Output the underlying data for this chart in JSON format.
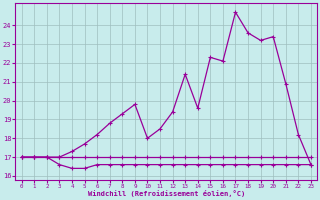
{
  "xlabel": "Windchill (Refroidissement éolien,°C)",
  "background_color": "#c8ecec",
  "line_color": "#990099",
  "grid_color": "#b0d0d0",
  "x_hours": [
    0,
    1,
    2,
    3,
    4,
    5,
    6,
    7,
    8,
    9,
    10,
    11,
    12,
    13,
    14,
    15,
    16,
    17,
    18,
    19,
    20,
    21,
    22,
    23
  ],
  "temp_line": [
    17,
    17,
    17,
    17,
    17,
    17,
    17,
    17,
    17,
    17,
    17,
    17,
    17,
    17,
    17,
    17,
    17,
    17,
    17,
    17,
    17,
    17,
    17,
    17
  ],
  "windchill_line": [
    17,
    17,
    17,
    16.6,
    16.4,
    16.4,
    16.6,
    16.6,
    16.6,
    16.6,
    16.6,
    16.6,
    16.6,
    16.6,
    16.6,
    16.6,
    16.6,
    16.6,
    16.6,
    16.6,
    16.6,
    16.6,
    16.6,
    16.6
  ],
  "actual_line": [
    17,
    17,
    17,
    17,
    17.3,
    17.7,
    18.2,
    18.8,
    19.3,
    19.8,
    18.0,
    18.5,
    19.4,
    21.4,
    19.6,
    22.3,
    22.1,
    24.7,
    23.6,
    23.2,
    23.4,
    20.9,
    18.2,
    16.6
  ],
  "ylim": [
    15.8,
    25.2
  ],
  "xlim": [
    -0.5,
    23.5
  ],
  "yticks": [
    16,
    17,
    18,
    19,
    20,
    21,
    22,
    23,
    24
  ],
  "xticks": [
    0,
    1,
    2,
    3,
    4,
    5,
    6,
    7,
    8,
    9,
    10,
    11,
    12,
    13,
    14,
    15,
    16,
    17,
    18,
    19,
    20,
    21,
    22,
    23
  ]
}
